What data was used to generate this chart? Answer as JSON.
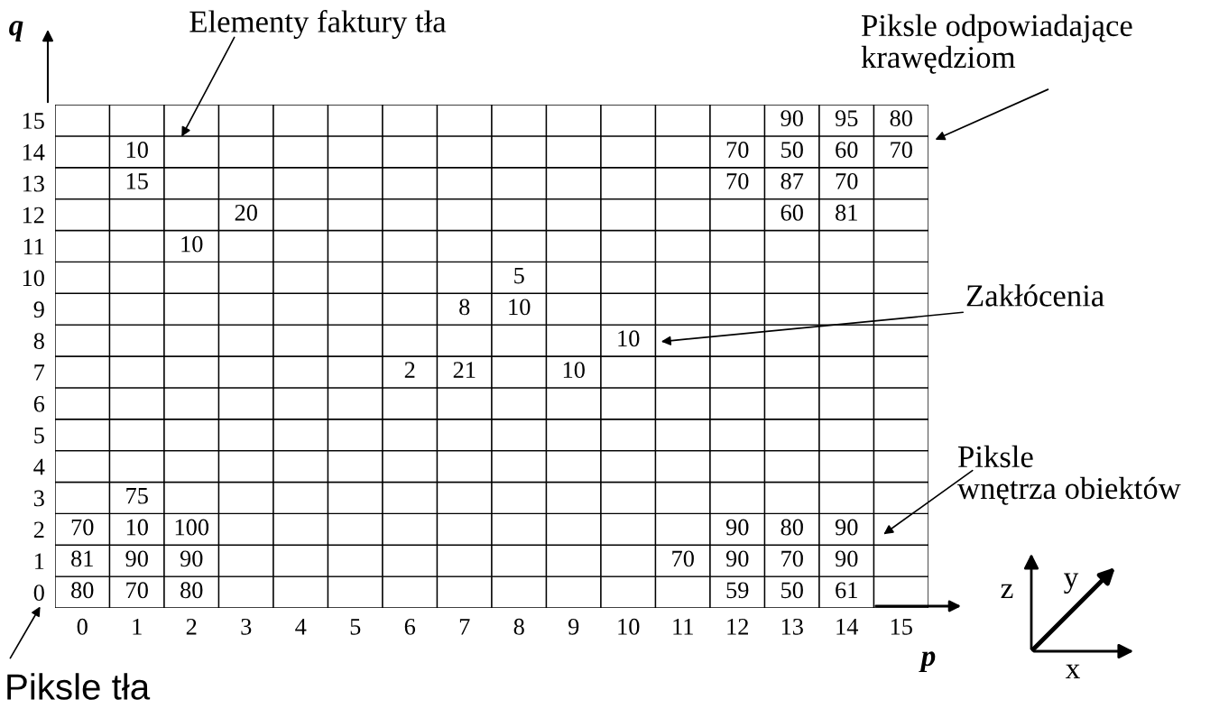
{
  "chart_data": {
    "type": "heatmap",
    "xlabel": "p",
    "ylabel": "q",
    "categories": [
      "0",
      "1",
      "2",
      "3",
      "4",
      "5",
      "6",
      "7",
      "8",
      "9",
      "10",
      "11",
      "12",
      "13",
      "14",
      "15"
    ],
    "y_categories": [
      "15",
      "14",
      "13",
      "12",
      "11",
      "10",
      "9",
      "8",
      "7",
      "6",
      "5",
      "4",
      "3",
      "2",
      "1",
      "0"
    ],
    "cells": [
      [
        null,
        null,
        null,
        null,
        null,
        null,
        null,
        null,
        null,
        null,
        null,
        null,
        null,
        90,
        95,
        80
      ],
      [
        null,
        10,
        null,
        null,
        null,
        null,
        null,
        null,
        null,
        null,
        null,
        null,
        70,
        50,
        60,
        70
      ],
      [
        null,
        15,
        null,
        null,
        null,
        null,
        null,
        null,
        null,
        null,
        null,
        null,
        70,
        87,
        70,
        null
      ],
      [
        null,
        null,
        null,
        20,
        null,
        null,
        null,
        null,
        null,
        null,
        null,
        null,
        null,
        60,
        81,
        null
      ],
      [
        null,
        null,
        10,
        null,
        null,
        null,
        null,
        null,
        null,
        null,
        null,
        null,
        null,
        null,
        null,
        null
      ],
      [
        null,
        null,
        null,
        null,
        null,
        null,
        null,
        null,
        5,
        null,
        null,
        null,
        null,
        null,
        null,
        null
      ],
      [
        null,
        null,
        null,
        null,
        null,
        null,
        null,
        8,
        10,
        null,
        null,
        null,
        null,
        null,
        null,
        null
      ],
      [
        null,
        null,
        null,
        null,
        null,
        null,
        null,
        null,
        null,
        null,
        10,
        null,
        null,
        null,
        null,
        null
      ],
      [
        null,
        null,
        null,
        null,
        null,
        null,
        2,
        21,
        null,
        10,
        null,
        null,
        null,
        null,
        null,
        null
      ],
      [
        null,
        null,
        null,
        null,
        null,
        null,
        null,
        null,
        null,
        null,
        null,
        null,
        null,
        null,
        null,
        null
      ],
      [
        null,
        null,
        null,
        null,
        null,
        null,
        null,
        null,
        null,
        null,
        null,
        null,
        null,
        null,
        null,
        null
      ],
      [
        null,
        null,
        null,
        null,
        null,
        null,
        null,
        null,
        null,
        null,
        null,
        null,
        null,
        null,
        null,
        null
      ],
      [
        null,
        75,
        null,
        null,
        null,
        null,
        null,
        null,
        null,
        null,
        null,
        null,
        null,
        null,
        null,
        null
      ],
      [
        70,
        10,
        100,
        null,
        null,
        null,
        null,
        null,
        null,
        null,
        null,
        null,
        90,
        80,
        90,
        null
      ],
      [
        81,
        90,
        90,
        null,
        null,
        null,
        null,
        null,
        null,
        null,
        null,
        70,
        90,
        70,
        90,
        null
      ],
      [
        80,
        70,
        80,
        null,
        null,
        null,
        null,
        null,
        null,
        null,
        null,
        null,
        59,
        50,
        61,
        null
      ]
    ],
    "data_labels": true,
    "annotations": [
      "Elementy faktury tła",
      "Piksle odpowiadające\nkrawędziom",
      "Zakłócenia",
      "Piksle\nwnętrza obiektów",
      "Piksle tła",
      "z",
      "y",
      "x"
    ]
  }
}
